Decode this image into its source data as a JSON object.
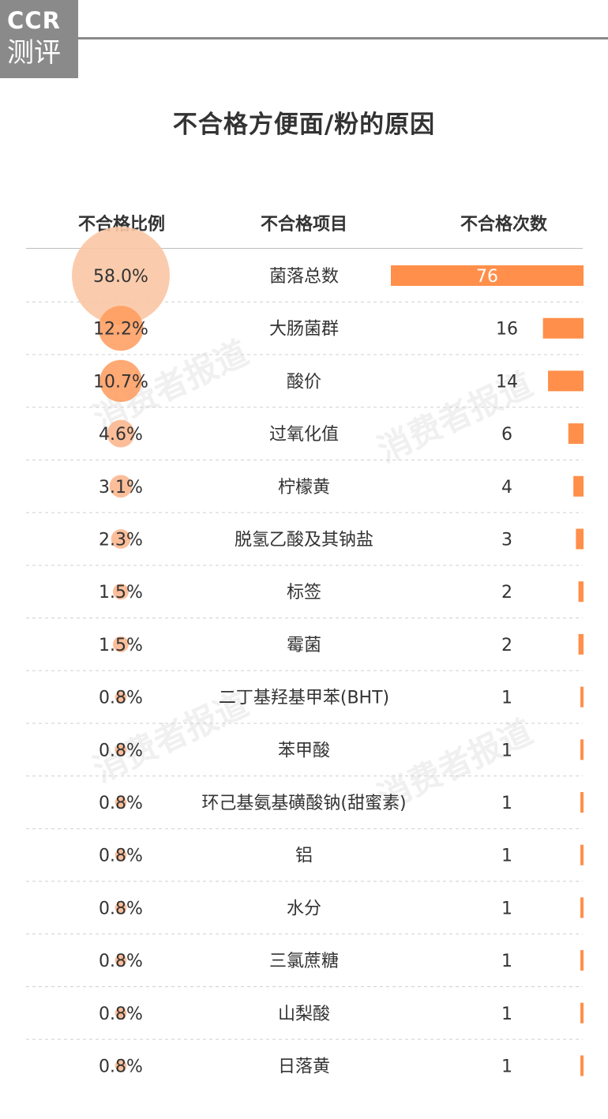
{
  "brand": {
    "logo_line1": "CCR",
    "logo_line2": "测评"
  },
  "watermark": "消费者报道",
  "chart_data": {
    "type": "table",
    "title": "不合格方便面/粉的原因",
    "columns": [
      "不合格比例",
      "不合格项目",
      "不合格次数"
    ],
    "rows": [
      {
        "percent": 58.0,
        "percent_label": "58.0%",
        "item": "菌落总数",
        "count": 76
      },
      {
        "percent": 12.2,
        "percent_label": "12.2%",
        "item": "大肠菌群",
        "count": 16
      },
      {
        "percent": 10.7,
        "percent_label": "10.7%",
        "item": "酸价",
        "count": 14
      },
      {
        "percent": 4.6,
        "percent_label": "4.6%",
        "item": "过氧化值",
        "count": 6
      },
      {
        "percent": 3.1,
        "percent_label": "3.1%",
        "item": "柠檬黄",
        "count": 4
      },
      {
        "percent": 2.3,
        "percent_label": "2.3%",
        "item": "脱氢乙酸及其钠盐",
        "count": 3
      },
      {
        "percent": 1.5,
        "percent_label": "1.5%",
        "item": "标签",
        "count": 2
      },
      {
        "percent": 1.5,
        "percent_label": "1.5%",
        "item": "霉菌",
        "count": 2
      },
      {
        "percent": 0.8,
        "percent_label": "0.8%",
        "item": "二丁基羟基甲苯(BHT)",
        "count": 1
      },
      {
        "percent": 0.8,
        "percent_label": "0.8%",
        "item": "苯甲酸",
        "count": 1
      },
      {
        "percent": 0.8,
        "percent_label": "0.8%",
        "item": "环己基氨基磺酸钠(甜蜜素)",
        "count": 1
      },
      {
        "percent": 0.8,
        "percent_label": "0.8%",
        "item": "铝",
        "count": 1
      },
      {
        "percent": 0.8,
        "percent_label": "0.8%",
        "item": "水分",
        "count": 1
      },
      {
        "percent": 0.8,
        "percent_label": "0.8%",
        "item": "三氯蔗糖",
        "count": 1
      },
      {
        "percent": 0.8,
        "percent_label": "0.8%",
        "item": "山梨酸",
        "count": 1
      },
      {
        "percent": 0.8,
        "percent_label": "0.8%",
        "item": "日落黄",
        "count": 1
      }
    ],
    "colors": {
      "bar": "#ff8f4a",
      "bubble_large": "#f9c6a4",
      "bubble_small": "#fbb388",
      "bubble_mid": "#ff9a5c",
      "divider": "#cfcfcf"
    }
  }
}
